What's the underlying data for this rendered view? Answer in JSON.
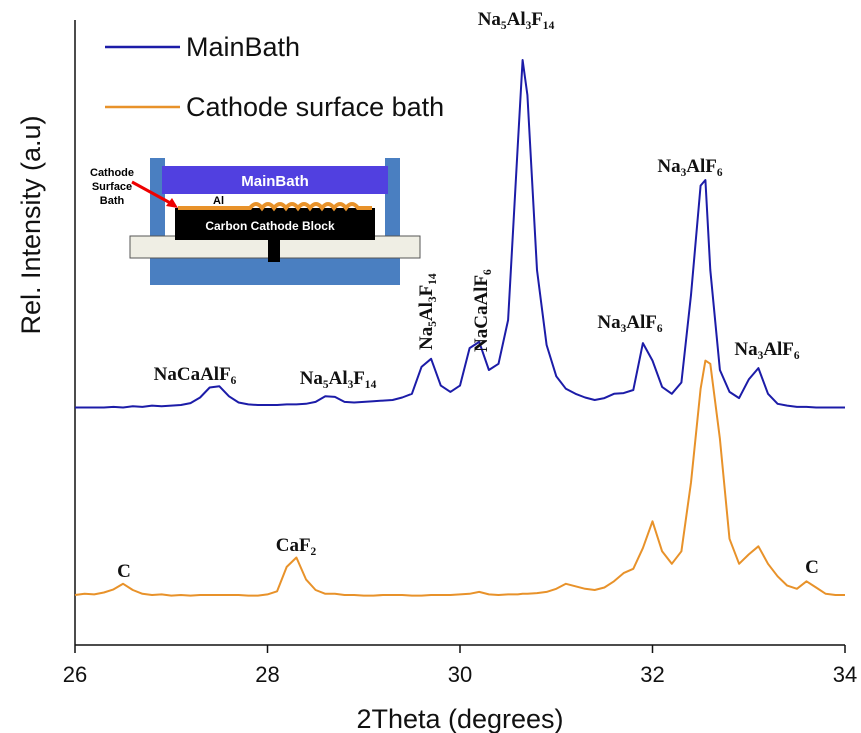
{
  "chart_data": {
    "type": "line",
    "xlabel": "2Theta (degrees)",
    "ylabel": "Rel. Intensity (a.u)",
    "xlim": [
      26,
      34
    ],
    "xticks": [
      26,
      28,
      30,
      32,
      34
    ],
    "ylim": [
      0,
      100
    ],
    "x": [
      26.0,
      26.1,
      26.2,
      26.3,
      26.4,
      26.5,
      26.6,
      26.7,
      26.8,
      26.9,
      27.0,
      27.1,
      27.2,
      27.3,
      27.4,
      27.5,
      27.6,
      27.7,
      27.8,
      27.9,
      28.0,
      28.1,
      28.2,
      28.3,
      28.4,
      28.5,
      28.6,
      28.7,
      28.8,
      28.9,
      29.0,
      29.1,
      29.2,
      29.3,
      29.4,
      29.5,
      29.6,
      29.7,
      29.8,
      29.9,
      30.0,
      30.1,
      30.2,
      30.3,
      30.4,
      30.5,
      30.6,
      30.65,
      30.7,
      30.8,
      30.9,
      31.0,
      31.1,
      31.2,
      31.3,
      31.4,
      31.5,
      31.6,
      31.7,
      31.8,
      31.9,
      32.0,
      32.1,
      32.2,
      32.3,
      32.4,
      32.5,
      32.55,
      32.6,
      32.7,
      32.8,
      32.9,
      33.0,
      33.1,
      33.2,
      33.3,
      33.4,
      33.5,
      33.6,
      33.7,
      33.8,
      33.9,
      34.0
    ],
    "series": [
      {
        "name": "MainBath",
        "color": "#1c1ca8",
        "values": [
          38,
          38,
          38,
          38,
          38.1,
          38,
          38.2,
          38.1,
          38.3,
          38.2,
          38.3,
          38.4,
          38.7,
          39.6,
          41.2,
          41.4,
          39.8,
          38.8,
          38.5,
          38.4,
          38.4,
          38.4,
          38.5,
          38.5,
          38.6,
          38.9,
          39.8,
          39.7,
          38.9,
          38.8,
          38.9,
          39.0,
          39.1,
          39.2,
          39.6,
          40.2,
          44.5,
          45.8,
          41.5,
          40.5,
          41.5,
          47.5,
          48.5,
          44,
          45,
          52,
          80,
          93.6,
          88,
          60,
          48,
          43,
          41,
          40.2,
          39.6,
          39.2,
          39.5,
          40.2,
          40.3,
          40.8,
          48.3,
          45.5,
          41.3,
          40.2,
          42,
          56,
          73.5,
          74.4,
          60,
          44,
          40.5,
          39.5,
          42.5,
          44.3,
          40.2,
          38.6,
          38.3,
          38.1,
          38.1,
          38,
          38,
          38,
          38
        ]
      },
      {
        "name": "Cathode surface bath",
        "color": "#e8922a",
        "values": [
          8,
          8.2,
          8.1,
          8.4,
          8.9,
          9.8,
          8.8,
          8.2,
          8,
          8.1,
          7.9,
          8,
          7.9,
          8,
          8,
          8,
          8,
          8,
          7.9,
          7.9,
          8.1,
          8.6,
          12.5,
          14,
          10.5,
          8.8,
          8.2,
          8.2,
          8,
          8,
          7.9,
          7.9,
          8,
          8,
          8,
          7.9,
          7.9,
          8,
          8,
          8,
          8.1,
          8.2,
          8.5,
          8.1,
          8,
          8.1,
          8.1,
          8.2,
          8.2,
          8.3,
          8.5,
          9,
          9.8,
          9.4,
          9,
          8.8,
          9.2,
          10.2,
          11.5,
          12.2,
          15.5,
          19.8,
          15,
          13,
          15,
          26,
          41,
          45.5,
          45,
          33,
          17,
          13,
          14.5,
          15.8,
          13,
          11,
          9.5,
          9,
          10.2,
          9.2,
          8.2,
          8,
          8
        ]
      }
    ],
    "annotations": [
      "Na₅Al₃F₁₄",
      "Na₃AlF₆",
      "NaCaAlF₆",
      "Na₅Al₃F₁₄",
      "Na₅Al₃F₁₄",
      "NaCaAlF₆",
      "Na₃AlF₆",
      "Na₃AlF₆",
      "CaF₂",
      "C",
      "C"
    ]
  },
  "inset": {
    "main_bath": "MainBath",
    "cathode_label": [
      "Cathode",
      "Surface",
      "Bath"
    ],
    "al": "Al",
    "block": "Carbon Cathode Block"
  }
}
